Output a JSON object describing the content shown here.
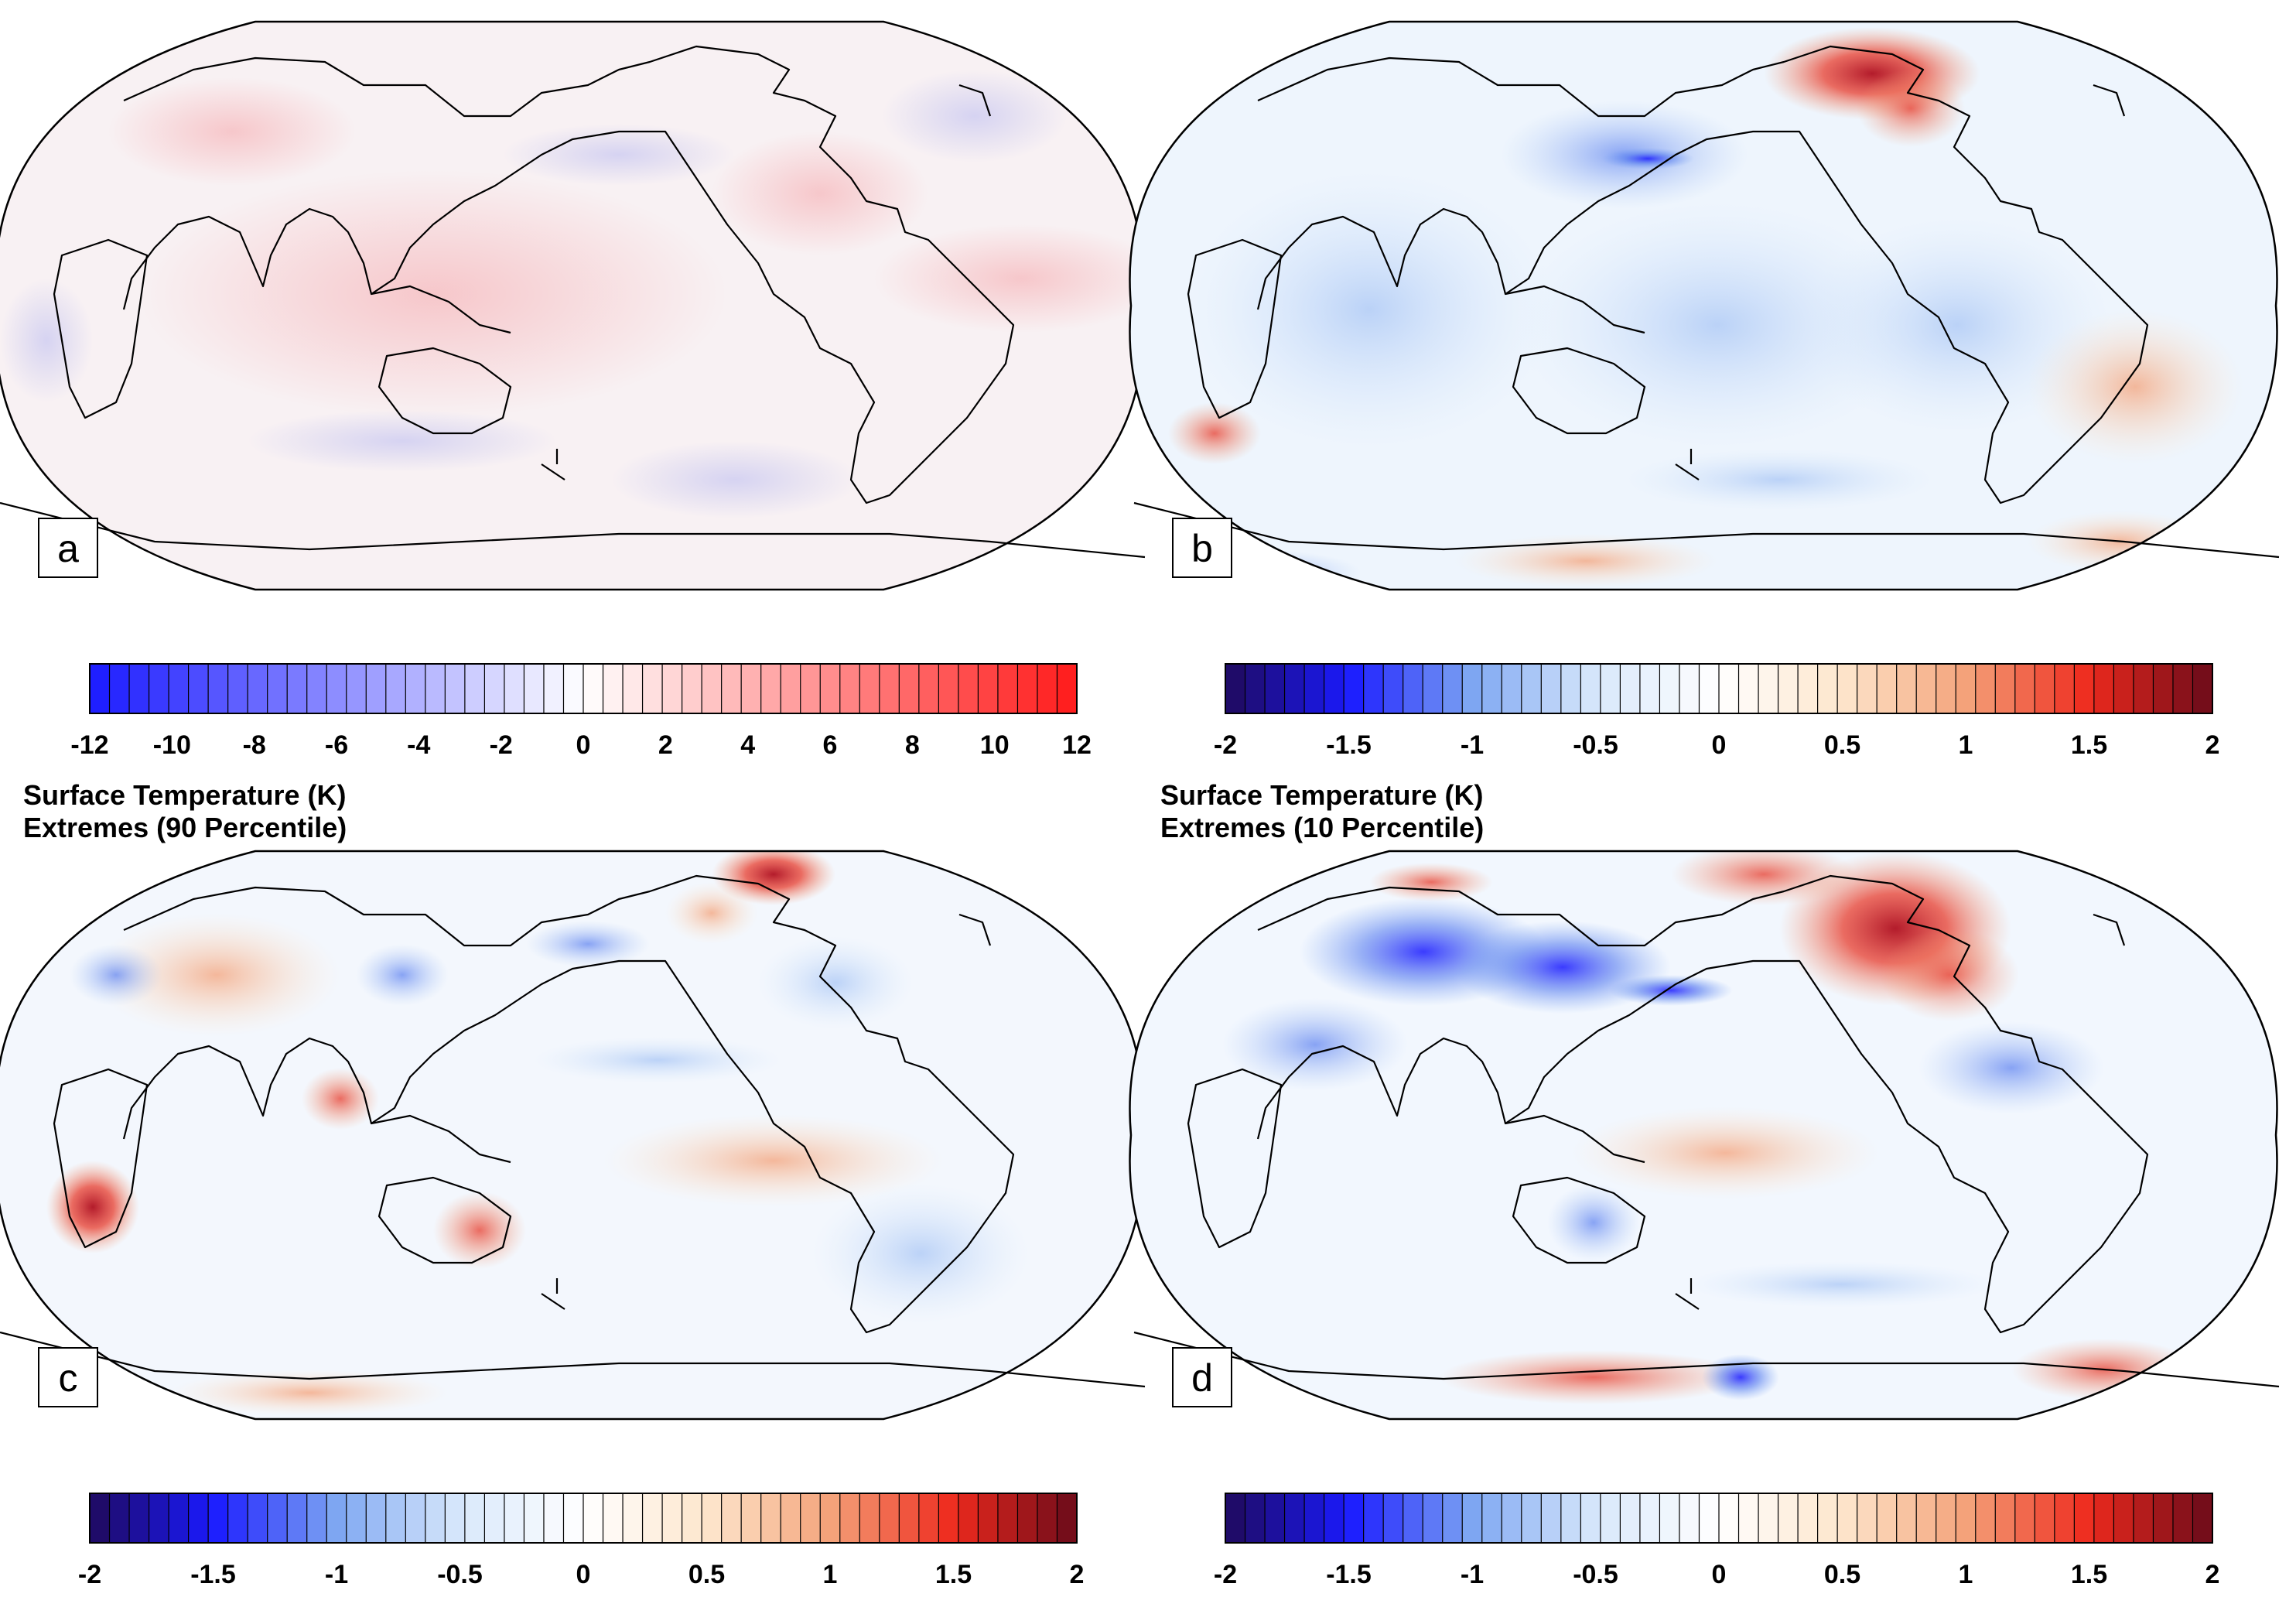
{
  "panels": [
    {
      "label": "a",
      "scheme": "bwr"
    },
    {
      "label": "b",
      "scheme": "diverging"
    },
    {
      "label": "c",
      "scheme": "diverging"
    },
    {
      "label": "d",
      "scheme": "diverging"
    }
  ],
  "titles": {
    "c": {
      "line1": "Surface Temperature (K)",
      "line2": "Extremes (90 Percentile)"
    },
    "d": {
      "line1": "Surface Temperature (K)",
      "line2": "Extremes (10 Percentile)"
    }
  },
  "colorbars": [
    {
      "id": "cb-a",
      "min": -12,
      "max": 12,
      "ticks": [
        "-12",
        "-10",
        "-8",
        "-6",
        "-4",
        "-2",
        "0",
        "2",
        "4",
        "6",
        "8",
        "10",
        "12"
      ],
      "scheme": "bwr",
      "bins": 50
    },
    {
      "id": "cb-b",
      "min": -2,
      "max": 2,
      "ticks": [
        "-2",
        "-1.5",
        "-1",
        "-0.5",
        "0",
        "0.5",
        "1",
        "1.5",
        "2"
      ],
      "scheme": "diverging",
      "bins": 50
    },
    {
      "id": "cb-c",
      "min": -2,
      "max": 2,
      "ticks": [
        "-2",
        "-1.5",
        "-1",
        "-0.5",
        "0",
        "0.5",
        "1",
        "1.5",
        "2"
      ],
      "scheme": "diverging",
      "bins": 50
    },
    {
      "id": "cb-d",
      "min": -2,
      "max": 2,
      "ticks": [
        "-2",
        "-1.5",
        "-1",
        "-0.5",
        "0",
        "0.5",
        "1",
        "1.5",
        "2"
      ],
      "scheme": "diverging",
      "bins": 50
    }
  ],
  "colors": {
    "bwr_low": "#1a1aff",
    "bwr_mid": "#ffffff",
    "bwr_high": "#ff1a1a",
    "div_stops": [
      "#1f0a5c",
      "#1a1aff",
      "#7ea6f2",
      "#d8e8fb",
      "#ffffff",
      "#fde6cc",
      "#f4a27a",
      "#ee2a1d",
      "#6b0a1a"
    ]
  }
}
